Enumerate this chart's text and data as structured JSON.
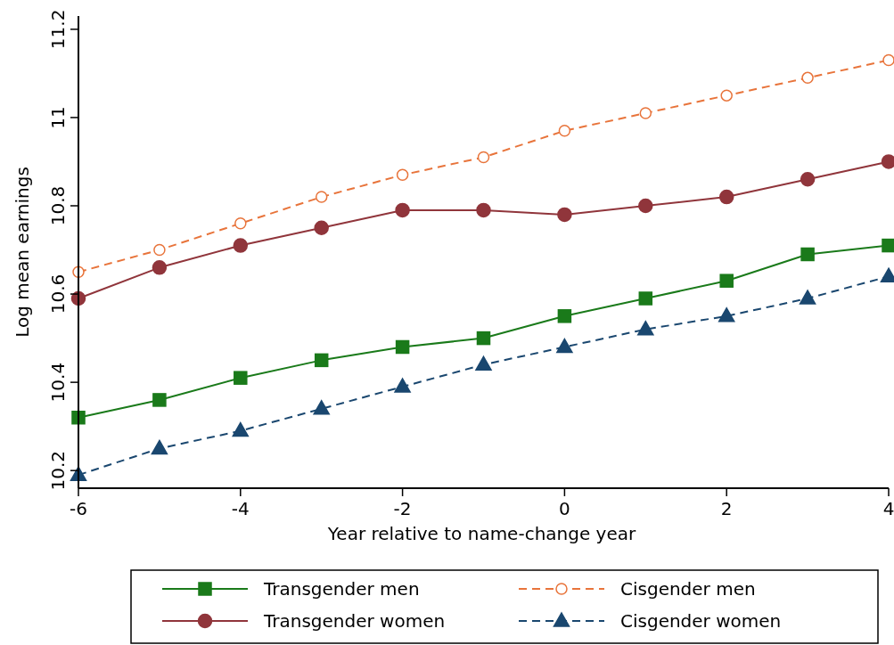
{
  "chart_data": {
    "type": "line",
    "xlabel": "Year relative to name-change year",
    "ylabel": "Log mean earnings",
    "x": [
      -6,
      -5,
      -4,
      -3,
      -2,
      -1,
      0,
      1,
      2,
      3,
      4
    ],
    "xlim": [
      -6,
      4
    ],
    "xticks": [
      -6,
      -4,
      -2,
      0,
      2,
      4
    ],
    "ylim": [
      10.16,
      11.23
    ],
    "yticks": [
      10.2,
      10.4,
      10.6,
      10.8,
      11,
      11.2
    ],
    "grid": false,
    "legend": "bottom",
    "series": [
      {
        "name": "Transgender men",
        "color": "#1a7a1a",
        "marker": "square",
        "line_style": "solid",
        "values": [
          10.32,
          10.36,
          10.41,
          10.45,
          10.48,
          10.5,
          10.55,
          10.59,
          10.63,
          10.69,
          10.71
        ]
      },
      {
        "name": "Cisgender men",
        "color": "#e8743b",
        "marker": "circle",
        "line_style": "dashed",
        "values": [
          10.65,
          10.7,
          10.76,
          10.82,
          10.87,
          10.91,
          10.97,
          11.01,
          11.05,
          11.09,
          11.13
        ]
      },
      {
        "name": "Transgender women",
        "color": "#90353b",
        "marker": "circle",
        "line_style": "solid",
        "values": [
          10.59,
          10.66,
          10.71,
          10.75,
          10.79,
          10.79,
          10.78,
          10.8,
          10.82,
          10.86,
          10.9
        ]
      },
      {
        "name": "Cisgender women",
        "color": "#1a476f",
        "marker": "triangle",
        "line_style": "dashed",
        "values": [
          10.19,
          10.25,
          10.29,
          10.34,
          10.39,
          10.44,
          10.48,
          10.52,
          10.55,
          10.59,
          10.64
        ]
      }
    ]
  }
}
